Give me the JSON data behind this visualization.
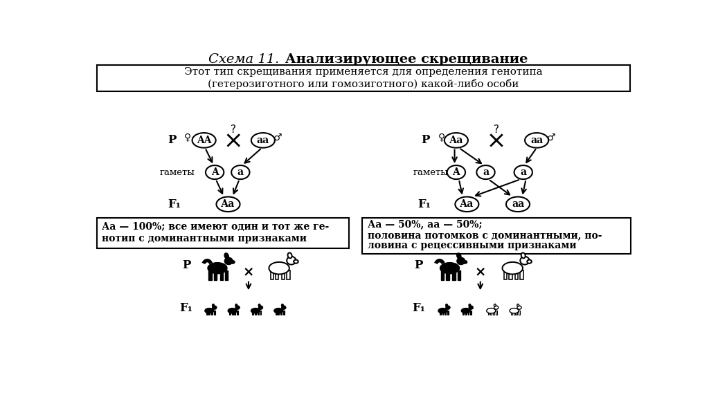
{
  "title_italic": "Схема 11.",
  "title_bold": " Анализирующее скрещивание",
  "subtitle_line1": "Этот тип скрещивания применяется для определения генотипа",
  "subtitle_line2": "(гетерозиготного или гомозиготного) какой-либо особи",
  "bg_color": "#ffffff",
  "left_schema": {
    "female_genotype": "AA",
    "male_genotype": "aa",
    "gamete_left": "A",
    "gamete_right": "a",
    "f1_genotype": "Аа",
    "question": "?"
  },
  "right_schema": {
    "female_genotype": "Аа",
    "male_genotype": "аа",
    "gamete_A": "A",
    "gamete_a1": "а",
    "gamete_a2": "а",
    "f1_left": "Аа",
    "f1_right": "аа",
    "question": "?"
  },
  "left_box_text_line1": "Аа — 100%; все имеют один и тот же ге-",
  "left_box_text_line2": "нотип с доминантными признаками",
  "right_box_text_line1": "Аа — 50%, аа — 50%;",
  "right_box_text_line2": "половина потомков с доминантными, по-",
  "right_box_text_line3": "ловина с рецессивными признаками"
}
